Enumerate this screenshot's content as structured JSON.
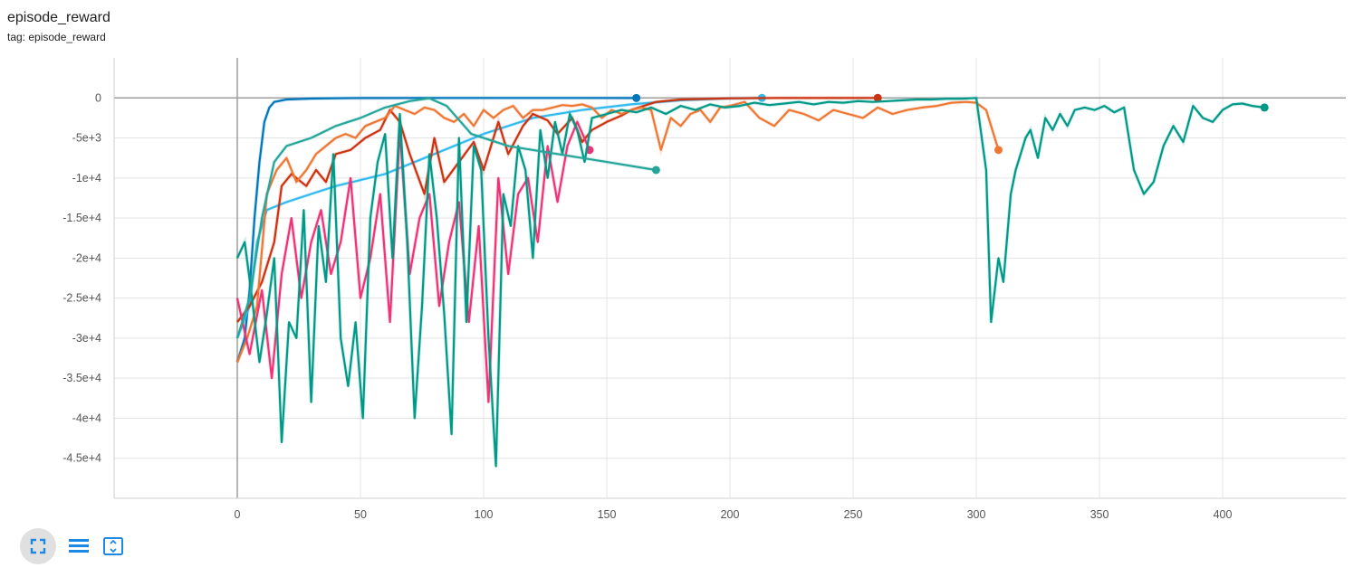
{
  "header": {
    "title": "episode_reward",
    "subtitle": "tag: episode_reward"
  },
  "toolbar": {
    "items": [
      {
        "icon": "fit-to-data-icon",
        "active": true
      },
      {
        "icon": "toggle-log-scale-icon",
        "active": false
      },
      {
        "icon": "expand-chart-icon",
        "active": false
      }
    ],
    "accent": "#1e88e5"
  },
  "chart_data": {
    "type": "line",
    "title": "episode_reward",
    "xlim": [
      -50,
      450
    ],
    "ylim": [
      -50000,
      5000
    ],
    "x_ticks": [
      0,
      50,
      100,
      150,
      200,
      250,
      300,
      350,
      400
    ],
    "x_tick_labels": [
      "0",
      "50",
      "100",
      "150",
      "200",
      "250",
      "300",
      "350",
      "400"
    ],
    "y_ticks": [
      0,
      -5000,
      -10000,
      -15000,
      -20000,
      -25000,
      -30000,
      -35000,
      -40000,
      -45000
    ],
    "y_tick_labels": [
      "0",
      "-5e+3",
      "-1e+4",
      "-1.5e+4",
      "-2e+4",
      "-2.5e+4",
      "-3e+4",
      "-3.5e+4",
      "-4e+4",
      "-4.5e+4"
    ],
    "grid": true,
    "series": [
      {
        "color": "#0077bb",
        "x": [
          0,
          3,
          5,
          7,
          9,
          11,
          13,
          15,
          20,
          30,
          40,
          52,
          60,
          80,
          100,
          120,
          140,
          162
        ],
        "y": [
          -33000,
          -30000,
          -24000,
          -15000,
          -8000,
          -3000,
          -1200,
          -500,
          -200,
          -80,
          -40,
          -20,
          -10,
          -5,
          -5,
          -5,
          -5,
          -10
        ]
      },
      {
        "color": "#33bbee",
        "x": [
          0,
          5,
          8,
          12,
          20,
          30,
          40,
          60,
          80,
          100,
          120,
          140,
          160,
          180,
          200,
          213
        ],
        "y": [
          -30000,
          -26000,
          -18000,
          -14000,
          -13000,
          -12000,
          -11000,
          -9500,
          -7000,
          -4500,
          -2500,
          -1500,
          -800,
          -300,
          -50,
          0
        ]
      },
      {
        "color": "#cc3311",
        "x": [
          0,
          5,
          10,
          15,
          18,
          22,
          28,
          32,
          36,
          40,
          46,
          52,
          58,
          62,
          66,
          70,
          76,
          80,
          84,
          90,
          96,
          100,
          106,
          110,
          116,
          120,
          126,
          130,
          136,
          140,
          144,
          150,
          156,
          160,
          170,
          180,
          200,
          220,
          240,
          260
        ],
        "y": [
          -28000,
          -26000,
          -23000,
          -18000,
          -11000,
          -9500,
          -11000,
          -9000,
          -10500,
          -7000,
          -6500,
          -5000,
          -4000,
          -1500,
          -3000,
          -7000,
          -12000,
          -5000,
          -10500,
          -8000,
          -5500,
          -9000,
          -3000,
          -7000,
          -3500,
          -2000,
          -2800,
          -4500,
          -2500,
          -5500,
          -4000,
          -3000,
          -2200,
          -1500,
          -500,
          -200,
          -50,
          0,
          0,
          0
        ]
      },
      {
        "color": "#ee7733",
        "x": [
          0,
          4,
          8,
          12,
          16,
          20,
          24,
          28,
          32,
          36,
          40,
          44,
          48,
          52,
          56,
          60,
          64,
          68,
          72,
          76,
          80,
          84,
          88,
          92,
          96,
          100,
          104,
          108,
          112,
          116,
          120,
          124,
          128,
          132,
          136,
          140,
          144,
          148,
          152,
          156,
          160,
          164,
          168,
          172,
          176,
          180,
          184,
          188,
          192,
          196,
          200,
          206,
          212,
          218,
          224,
          230,
          236,
          242,
          248,
          254,
          260,
          266,
          272,
          278,
          284,
          290,
          296,
          300,
          304,
          309
        ],
        "y": [
          -33000,
          -30000,
          -26000,
          -12000,
          -9000,
          -7500,
          -10500,
          -9000,
          -7000,
          -6000,
          -5000,
          -4500,
          -5000,
          -3500,
          -3000,
          -2500,
          -1000,
          -1500,
          -2000,
          -1200,
          -1500,
          -2500,
          -3000,
          -2000,
          -3500,
          -1500,
          -2500,
          -1500,
          -1000,
          -2500,
          -1500,
          -1500,
          -1200,
          -900,
          -1000,
          -800,
          -1200,
          -2500,
          -1500,
          -2000,
          -1500,
          -1200,
          -1500,
          -6500,
          -2500,
          -3500,
          -2000,
          -1500,
          -3000,
          -1200,
          -1000,
          -500,
          -2500,
          -3500,
          -1500,
          -2000,
          -2800,
          -1500,
          -2000,
          -2500,
          -1200,
          -2000,
          -1500,
          -1200,
          -1000,
          -600,
          -500,
          -600,
          -1500,
          -6500
        ]
      },
      {
        "color": "#ee3377",
        "x": [
          0,
          5,
          10,
          14,
          18,
          22,
          26,
          30,
          34,
          38,
          42,
          46,
          50,
          54,
          58,
          62,
          66,
          70,
          74,
          78,
          82,
          86,
          90,
          94,
          98,
          102,
          106,
          110,
          114,
          118,
          122,
          126,
          130,
          134,
          138,
          143
        ],
        "y": [
          -25000,
          -32000,
          -24000,
          -35000,
          -22000,
          -15000,
          -25000,
          -18000,
          -14000,
          -22000,
          -18000,
          -10000,
          -25000,
          -20000,
          -12000,
          -28000,
          -4000,
          -22000,
          -15000,
          -12000,
          -26000,
          -18000,
          -13000,
          -28000,
          -16000,
          -38000,
          -10000,
          -22000,
          -12000,
          -10000,
          -18000,
          -6000,
          -13000,
          -6000,
          -3000,
          -6500
        ]
      },
      {
        "color": "#009988",
        "x": [
          0,
          3,
          6,
          9,
          12,
          15,
          18,
          21,
          24,
          27,
          30,
          33,
          36,
          39,
          42,
          45,
          48,
          51,
          54,
          57,
          60,
          63,
          66,
          69,
          72,
          75,
          78,
          81,
          84,
          87,
          90,
          93,
          96,
          99,
          102,
          105,
          108,
          111,
          114,
          117,
          120,
          123,
          126,
          129,
          132,
          135,
          138,
          141,
          144,
          150,
          156,
          162,
          168,
          174,
          180,
          186,
          192,
          198,
          204,
          210,
          216,
          222,
          228,
          234,
          240,
          246,
          252,
          258,
          264,
          270,
          276,
          282,
          288,
          294,
          300,
          304,
          306,
          309,
          311,
          314,
          316,
          318,
          320,
          322,
          325,
          328,
          331,
          334,
          337,
          340,
          344,
          348,
          352,
          356,
          360,
          364,
          368,
          372,
          376,
          380,
          384,
          388,
          392,
          396,
          400,
          404,
          408,
          412,
          417
        ],
        "y": [
          -20000,
          -18000,
          -25000,
          -33000,
          -27000,
          -20000,
          -43000,
          -28000,
          -30000,
          -14000,
          -38000,
          -16000,
          -23000,
          -7000,
          -30000,
          -36000,
          -28000,
          -40000,
          -15000,
          -8000,
          -4500,
          -20000,
          -2000,
          -18000,
          -40000,
          -26000,
          -7000,
          -15000,
          -27000,
          -42000,
          -5000,
          -28000,
          -6000,
          -9000,
          -30000,
          -46000,
          -12000,
          -16000,
          -6000,
          -9000,
          -20000,
          -4000,
          -10000,
          -3000,
          -7000,
          -2000,
          -4000,
          -8000,
          -2500,
          -2000,
          -1500,
          -1800,
          -1200,
          -2000,
          -1000,
          -1500,
          -800,
          -1200,
          -1000,
          -600,
          -900,
          -700,
          -500,
          -800,
          -500,
          -600,
          -400,
          -500,
          -400,
          -300,
          -200,
          -200,
          -100,
          -100,
          0,
          -9000,
          -28000,
          -20000,
          -23000,
          -12000,
          -9000,
          -7000,
          -5000,
          -4000,
          -7500,
          -2500,
          -4000,
          -2000,
          -3500,
          -1500,
          -1200,
          -1500,
          -1000,
          -1800,
          -1200,
          -9000,
          -12000,
          -10500,
          -6000,
          -3500,
          -5500,
          -1000,
          -2500,
          -3000,
          -1500,
          -800,
          -700,
          -1000,
          -1200
        ]
      },
      {
        "color": "#26a69a",
        "x": [
          0,
          5,
          10,
          15,
          20,
          30,
          40,
          50,
          60,
          70,
          78,
          85,
          95,
          110,
          130,
          150,
          170
        ],
        "y": [
          -30000,
          -25000,
          -15000,
          -8000,
          -6000,
          -5000,
          -3500,
          -2500,
          -1200,
          -400,
          -50,
          -1000,
          -4500,
          -6000,
          -7000,
          -8000,
          -9000
        ]
      }
    ]
  }
}
